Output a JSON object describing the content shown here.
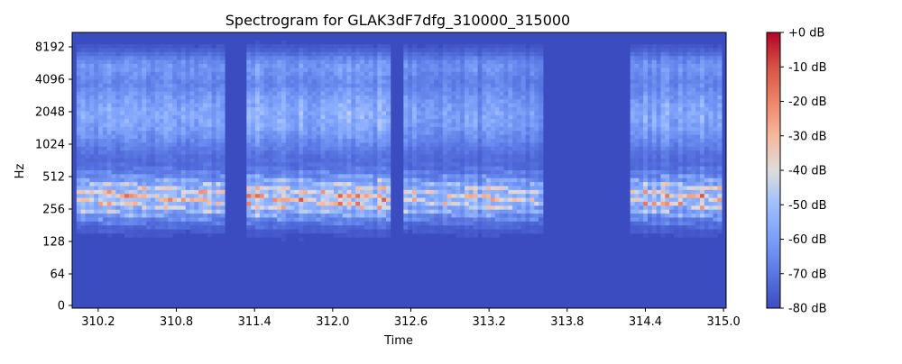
{
  "chart_data": {
    "type": "heatmap",
    "title": "Spectrogram for GLAK3dF7dfg_310000_315000",
    "xlabel": "Time",
    "ylabel": "Hz",
    "xlim": [
      310.0,
      315.02
    ],
    "x_ticks": [
      "310.2",
      "310.8",
      "311.4",
      "312.0",
      "312.6",
      "313.2",
      "313.8",
      "314.4",
      "315.0"
    ],
    "y_scale": "symlog",
    "y_ticks": [
      "0",
      "64",
      "128",
      "256",
      "512",
      "1024",
      "2048",
      "4096",
      "8192"
    ],
    "colormap": "coolwarm",
    "colorbar": {
      "range_db": [
        -80,
        0
      ],
      "ticks": [
        "+0 dB",
        "-10 dB",
        "-20 dB",
        "-30 dB",
        "-40 dB",
        "-50 dB",
        "-60 dB",
        "-70 dB",
        "-80 dB"
      ]
    },
    "silent_regions": [
      [
        311.18,
        311.35
      ],
      [
        313.62,
        314.3
      ]
    ],
    "speech_segments": [
      {
        "start": 310.05,
        "end": 311.18,
        "peak_db": -10
      },
      {
        "start": 311.35,
        "end": 312.45,
        "peak_db": -5
      },
      {
        "start": 312.55,
        "end": 313.1,
        "peak_db": -18
      },
      {
        "start": 313.12,
        "end": 313.62,
        "peak_db": -22
      },
      {
        "start": 314.3,
        "end": 315.0,
        "peak_db": -10
      }
    ]
  }
}
